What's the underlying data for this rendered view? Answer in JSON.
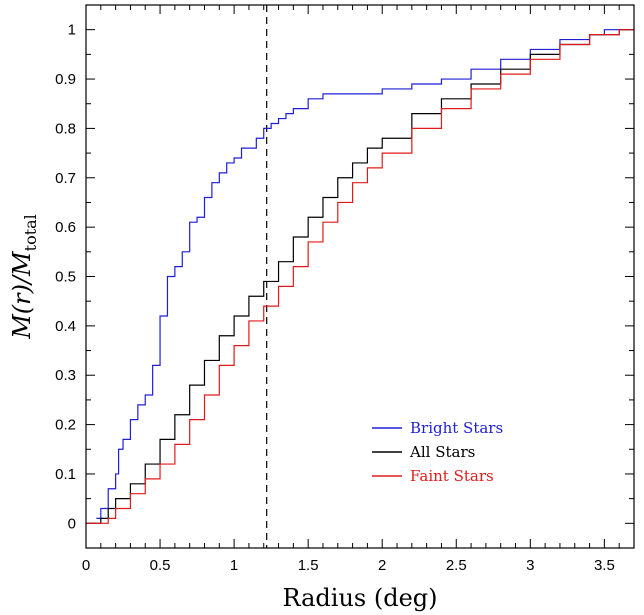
{
  "chart_data": {
    "type": "line",
    "title": "",
    "xlabel": "Radius (deg)",
    "ylabel": {
      "main": "M(r)/M",
      "subscript": "total"
    },
    "xlim": [
      0,
      3.7
    ],
    "ylim": [
      -0.05,
      1.05
    ],
    "xticks": [
      0,
      0.5,
      1,
      1.5,
      2,
      2.5,
      3,
      3.5
    ],
    "xtick_labels": [
      "0",
      "0.5",
      "1",
      "1.5",
      "2",
      "2.5",
      "3",
      "3.5"
    ],
    "yticks": [
      0,
      0.1,
      0.2,
      0.3,
      0.4,
      0.5,
      0.6,
      0.7,
      0.8,
      0.9,
      1
    ],
    "ytick_labels": [
      "0",
      "0.1",
      "0.2",
      "0.3",
      "0.4",
      "0.5",
      "0.6",
      "0.7",
      "0.8",
      "0.9",
      "1"
    ],
    "grid": false,
    "legend_position": "lower-right",
    "reference_line": {
      "x": 1.22,
      "style": "dashed",
      "color": "#000000"
    },
    "series": [
      {
        "name": "Bright Stars",
        "color": "#1f1fd8",
        "x": [
          0.07,
          0.1,
          0.15,
          0.2,
          0.22,
          0.25,
          0.3,
          0.35,
          0.4,
          0.45,
          0.5,
          0.55,
          0.6,
          0.65,
          0.7,
          0.75,
          0.8,
          0.85,
          0.9,
          0.95,
          1.0,
          1.05,
          1.1,
          1.15,
          1.2,
          1.25,
          1.3,
          1.35,
          1.4,
          1.5,
          1.6,
          1.8,
          2.0,
          2.2,
          2.4,
          2.6,
          2.8,
          3.0,
          3.2,
          3.4,
          3.5,
          3.65
        ],
        "y": [
          0.01,
          0.03,
          0.07,
          0.1,
          0.15,
          0.17,
          0.21,
          0.24,
          0.26,
          0.32,
          0.42,
          0.5,
          0.52,
          0.55,
          0.61,
          0.62,
          0.66,
          0.69,
          0.71,
          0.73,
          0.74,
          0.76,
          0.76,
          0.78,
          0.8,
          0.81,
          0.82,
          0.83,
          0.84,
          0.86,
          0.87,
          0.87,
          0.88,
          0.89,
          0.9,
          0.92,
          0.94,
          0.96,
          0.98,
          0.99,
          1.0,
          1.0
        ]
      },
      {
        "name": "All Stars",
        "color": "#000000",
        "x": [
          0.0,
          0.05,
          0.1,
          0.15,
          0.2,
          0.3,
          0.4,
          0.5,
          0.6,
          0.7,
          0.8,
          0.9,
          1.0,
          1.1,
          1.2,
          1.3,
          1.4,
          1.5,
          1.6,
          1.7,
          1.8,
          1.9,
          2.0,
          2.2,
          2.4,
          2.6,
          2.8,
          3.0,
          3.2,
          3.4,
          3.6,
          3.7
        ],
        "y": [
          0.0,
          0.0,
          0.01,
          0.03,
          0.05,
          0.08,
          0.12,
          0.17,
          0.22,
          0.28,
          0.33,
          0.38,
          0.42,
          0.46,
          0.49,
          0.53,
          0.58,
          0.62,
          0.66,
          0.7,
          0.73,
          0.76,
          0.78,
          0.83,
          0.86,
          0.89,
          0.92,
          0.95,
          0.97,
          0.99,
          1.0,
          1.0
        ]
      },
      {
        "name": "Faint Stars",
        "color": "#e11b1b",
        "x": [
          0.0,
          0.05,
          0.1,
          0.15,
          0.2,
          0.3,
          0.4,
          0.5,
          0.6,
          0.7,
          0.8,
          0.9,
          1.0,
          1.1,
          1.2,
          1.3,
          1.4,
          1.5,
          1.6,
          1.7,
          1.8,
          1.9,
          2.0,
          2.2,
          2.4,
          2.6,
          2.8,
          3.0,
          3.2,
          3.4,
          3.6,
          3.7
        ],
        "y": [
          0.0,
          0.0,
          0.0,
          0.01,
          0.03,
          0.06,
          0.09,
          0.12,
          0.16,
          0.21,
          0.26,
          0.32,
          0.36,
          0.41,
          0.44,
          0.48,
          0.52,
          0.57,
          0.61,
          0.65,
          0.69,
          0.72,
          0.75,
          0.8,
          0.84,
          0.88,
          0.91,
          0.94,
          0.97,
          0.99,
          1.0,
          1.0
        ]
      }
    ]
  }
}
